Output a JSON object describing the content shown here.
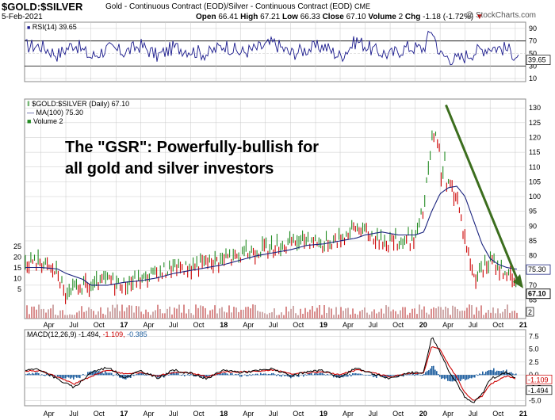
{
  "header": {
    "symbol": "$GOLD:$SILVER",
    "description": "Gold - Continuous Contract (EOD)/Silver - Continuous Contract (EOD)",
    "exchange": "CME",
    "date": "5-Feb-2021",
    "open_label": "Open",
    "open": "66.41",
    "high_label": "High",
    "high": "67.21",
    "low_label": "Low",
    "low": "66.33",
    "close_label": "Close",
    "close": "67.10",
    "volume_label": "Volume",
    "volume": "2",
    "chg_label": "Chg",
    "chg": "-1.18 (-1.72%)",
    "down_arrow": "▼",
    "credit": "@ StockCharts.com"
  },
  "annotation": "The \"GSR\": Powerfully-bullish for\nall gold and silver investors",
  "colors": {
    "up": "#228b22",
    "down": "#cc0000",
    "ma": "#1a237e",
    "rsi": "#1a1a8c",
    "macd": "#000000",
    "signal": "#cc0000",
    "histogram": "#1f5f9f",
    "arrow": "#3c6e1e",
    "volume": "#d98c8c",
    "grid": "#c8c8c8"
  },
  "chart_data": [
    {
      "type": "line",
      "panel": "RSI",
      "legend": "RSI(14) 39.65",
      "last_value_label": "39.65",
      "y_ticks": [
        "90",
        "70",
        "50",
        "30",
        "10"
      ],
      "reference_levels": [
        70,
        30
      ],
      "x": [
        "2016-04",
        "2016-06",
        "2016-08",
        "2016-10",
        "2016-12",
        "2017-02",
        "2017-04",
        "2017-06",
        "2017-08",
        "2017-10",
        "2017-12",
        "2018-02",
        "2018-04",
        "2018-06",
        "2018-08",
        "2018-10",
        "2018-12",
        "2019-02",
        "2019-04",
        "2019-06",
        "2019-08",
        "2019-10",
        "2019-12",
        "2020-02",
        "2020-03",
        "2020-04",
        "2020-06",
        "2020-08",
        "2020-10",
        "2020-12",
        "2021-02"
      ],
      "y": [
        62,
        48,
        66,
        44,
        58,
        52,
        63,
        46,
        60,
        55,
        49,
        64,
        51,
        58,
        67,
        50,
        57,
        62,
        45,
        71,
        55,
        48,
        60,
        58,
        90,
        48,
        40,
        52,
        61,
        57,
        39.65
      ]
    },
    {
      "type": "line",
      "panel": "Price",
      "legend": [
        "$GOLD:$SILVER (Daily) 67.10",
        "MA(100) 75.30",
        "Volume 2"
      ],
      "y_ticks": [
        "130",
        "125",
        "120",
        "115",
        "110",
        "105",
        "100",
        "95",
        "90",
        "85",
        "80",
        "75",
        "70",
        "65"
      ],
      "ylim": [
        63,
        133
      ],
      "last_close_label": "67.10",
      "ma_label": "75.30",
      "x": [
        "2016-04",
        "2016-06",
        "2016-07",
        "2016-09",
        "2016-10",
        "2016-12",
        "2017-02",
        "2017-04",
        "2017-06",
        "2017-08",
        "2017-10",
        "2017-12",
        "2018-02",
        "2018-04",
        "2018-06",
        "2018-08",
        "2018-10",
        "2018-12",
        "2019-02",
        "2019-04",
        "2019-06",
        "2019-07",
        "2019-09",
        "2019-11",
        "2020-01",
        "2020-02",
        "2020-03",
        "2020-04",
        "2020-05",
        "2020-06",
        "2020-07",
        "2020-08",
        "2020-09",
        "2020-10",
        "2020-11",
        "2020-12",
        "2021-01",
        "2021-02"
      ],
      "series": [
        {
          "name": "$GOLD:$SILVER",
          "values": [
            78,
            74,
            66,
            70,
            69,
            72,
            70,
            72,
            74,
            76,
            76,
            78,
            79,
            80,
            82,
            83,
            84,
            86,
            84,
            86,
            90,
            88,
            85,
            85,
            86,
            96,
            118,
            112,
            104,
            100,
            86,
            73,
            75,
            78,
            76,
            74,
            70,
            67.1
          ]
        },
        {
          "name": "MA(100)",
          "values": [
            76,
            75.5,
            74,
            72,
            70,
            70,
            71,
            71.5,
            72.5,
            74,
            75,
            76,
            77,
            78.5,
            80,
            81,
            82,
            83.5,
            84,
            85,
            86,
            87,
            88,
            87,
            87,
            88,
            95,
            101,
            103,
            103.5,
            100,
            92,
            84,
            79,
            77,
            76,
            75.5,
            75.3
          ]
        }
      ],
      "volume_axis_ticks": [
        "25",
        "20",
        "15",
        "10",
        "5"
      ],
      "volume_last_label": "2"
    },
    {
      "type": "line",
      "panel": "MACD",
      "legend": [
        "MACD(12,26,9) -1.494,",
        "-1.109,",
        "-0.385"
      ],
      "y_ticks": [
        "7.5",
        "5.0",
        "2.5",
        "0.0",
        "-2.5",
        "-5.0"
      ],
      "ylim": [
        -6,
        8.8
      ],
      "last_labels": [
        "-1.109",
        "-1.494"
      ],
      "x": [
        "2016-04",
        "2016-06",
        "2016-08",
        "2016-10",
        "2016-12",
        "2017-02",
        "2017-04",
        "2017-06",
        "2017-08",
        "2017-10",
        "2017-12",
        "2018-02",
        "2018-04",
        "2018-06",
        "2018-08",
        "2018-10",
        "2018-12",
        "2019-02",
        "2019-04",
        "2019-06",
        "2019-08",
        "2019-10",
        "2019-12",
        "2020-02",
        "2020-03",
        "2020-04",
        "2020-05",
        "2020-06",
        "2020-07",
        "2020-08",
        "2020-09",
        "2020-10",
        "2020-12",
        "2021-02"
      ],
      "series": [
        {
          "name": "MACD",
          "values": [
            1.0,
            -0.8,
            -2.5,
            0.5,
            1.5,
            -0.5,
            0.8,
            -0.6,
            0.9,
            0.3,
            -0.8,
            1.0,
            0.5,
            0.8,
            1.2,
            -0.3,
            0.6,
            0.8,
            -0.5,
            1.4,
            0.2,
            -0.8,
            0.4,
            0.5,
            7.5,
            4.5,
            1.0,
            -1.5,
            -4.5,
            -5.5,
            -3.8,
            -0.8,
            0.5,
            -1.494
          ]
        },
        {
          "name": "Signal",
          "values": [
            0.8,
            -0.4,
            -1.8,
            -0.3,
            1.0,
            0.2,
            0.4,
            -0.2,
            0.5,
            0.4,
            -0.4,
            0.6,
            0.6,
            0.7,
            1.0,
            0.2,
            0.4,
            0.6,
            0,
            1.0,
            0.4,
            -0.4,
            0.2,
            0.4,
            5.5,
            5.0,
            2.0,
            -0.5,
            -3.5,
            -5.0,
            -4.2,
            -1.8,
            -0.2,
            -1.109
          ]
        }
      ]
    }
  ],
  "x_axis": {
    "labels": [
      "Apr",
      "Jul",
      "Oct",
      "17",
      "Apr",
      "Jul",
      "Oct",
      "18",
      "Apr",
      "Jul",
      "Oct",
      "19",
      "Apr",
      "Jul",
      "Oct",
      "20",
      "Apr",
      "Jul",
      "Oct",
      "21"
    ],
    "bold_labels": [
      "17",
      "18",
      "19",
      "20",
      "21"
    ]
  }
}
